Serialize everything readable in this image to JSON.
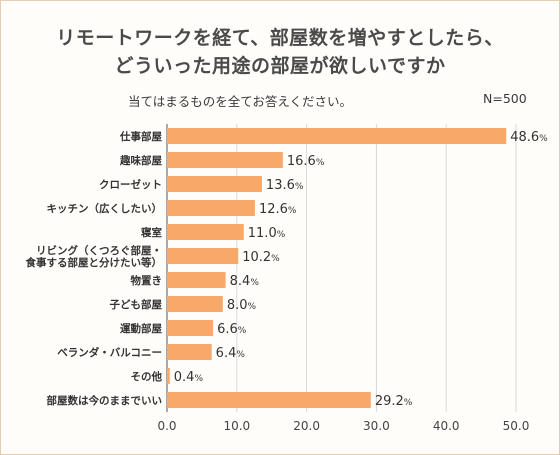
{
  "header": {
    "title_line1": "リモートワークを経て、部屋数を増やすとしたら、",
    "title_line2": "どういった用途の部屋が欲しいですか",
    "question": "当てはまるものを全てお答えください。",
    "sample": "N=500"
  },
  "chart_data": {
    "type": "bar",
    "orientation": "horizontal",
    "title": "リモートワークを経て、部屋数を増やすとしたら、どういった用途の部屋が欲しいですか",
    "subtitle": "当てはまるものを全てお答えください。",
    "categories": [
      [
        "仕事部屋"
      ],
      [
        "趣味部屋"
      ],
      [
        "クローゼット"
      ],
      [
        "キッチン（広くしたい）"
      ],
      [
        "寝室"
      ],
      [
        "リビング（くつろぐ部屋・",
        "食事する部屋と分けたい等）"
      ],
      [
        "物置き"
      ],
      [
        "子ども部屋"
      ],
      [
        "運動部屋"
      ],
      [
        "ベランダ・バルコニー"
      ],
      [
        "その他"
      ],
      [
        "部屋数は今のままでいい"
      ]
    ],
    "values": [
      48.6,
      16.6,
      13.6,
      12.6,
      11.0,
      10.2,
      8.4,
      8.0,
      6.6,
      6.4,
      0.4,
      29.2
    ],
    "value_labels": [
      "48.6",
      "16.6",
      "13.6",
      "12.6",
      "11.0",
      "10.2",
      "8.4",
      "8.0",
      "6.6",
      "6.4",
      "0.4",
      "29.2"
    ],
    "unit": "%",
    "xlim": [
      0,
      50
    ],
    "xticks": [
      "0.0",
      "10.0",
      "20.0",
      "30.0",
      "40.0",
      "50.0"
    ],
    "xtick_values": [
      0,
      10,
      20,
      30,
      40,
      50
    ],
    "grid": "vertical",
    "bar_color": "#f8a96a"
  }
}
